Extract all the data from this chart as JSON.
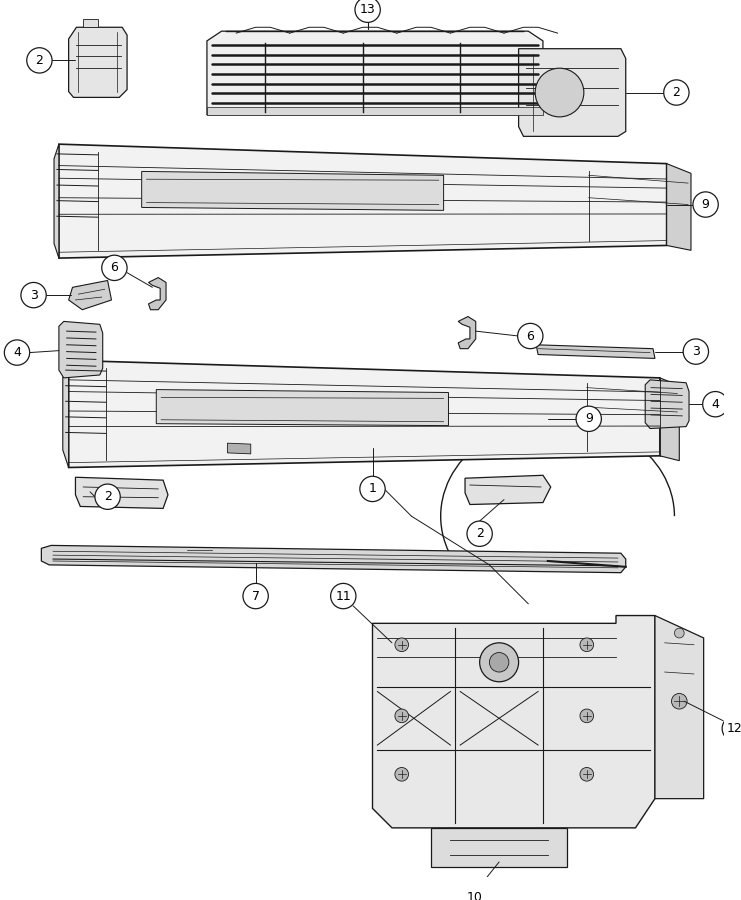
{
  "bg_color": "#ffffff",
  "line_color": "#1a1a1a",
  "fig_width": 7.41,
  "fig_height": 9.0,
  "dpi": 100,
  "label_fontsize": 9,
  "circle_r": 0.022
}
